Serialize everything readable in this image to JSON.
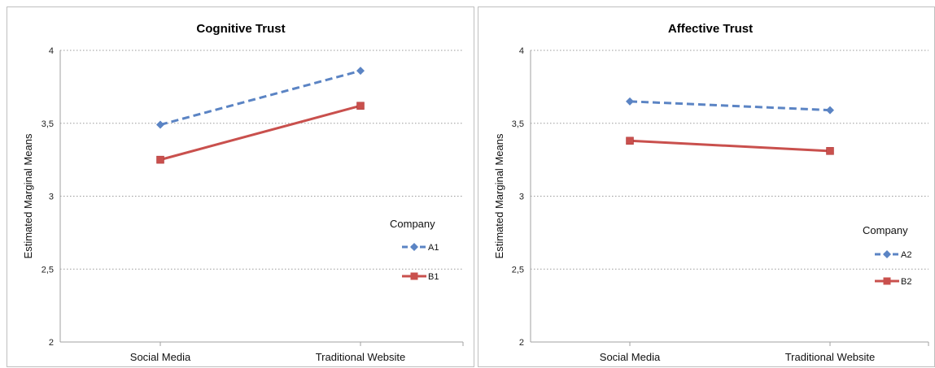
{
  "chart_data": [
    {
      "type": "line",
      "title": "Cognitive Trust",
      "ylabel": "Estimated Marginal Means",
      "xlabel": "",
      "categories": [
        "Social Media",
        "Traditional Website"
      ],
      "ylim": [
        2,
        4
      ],
      "yticks": [
        "2",
        "2,5",
        "3",
        "3,5",
        "4"
      ],
      "legend_title": "Company",
      "legend_position": "right",
      "grid": true,
      "series": [
        {
          "name": "A1",
          "values": [
            3.49,
            3.86
          ],
          "color": "#5b84c4",
          "style": "dashed",
          "marker": "diamond"
        },
        {
          "name": "B1",
          "values": [
            3.25,
            3.62
          ],
          "color": "#c9504d",
          "style": "solid",
          "marker": "square"
        }
      ]
    },
    {
      "type": "line",
      "title": "Affective Trust",
      "ylabel": "Estimated Marginal Means",
      "xlabel": "",
      "categories": [
        "Social Media",
        "Traditional Website"
      ],
      "ylim": [
        2,
        4
      ],
      "yticks": [
        "2",
        "2,5",
        "3",
        "3,5",
        "4"
      ],
      "legend_title": "Company",
      "legend_position": "right",
      "grid": true,
      "series": [
        {
          "name": "A2",
          "values": [
            3.65,
            3.59
          ],
          "color": "#5b84c4",
          "style": "dashed",
          "marker": "diamond"
        },
        {
          "name": "B2",
          "values": [
            3.38,
            3.31
          ],
          "color": "#c9504d",
          "style": "solid",
          "marker": "square"
        }
      ]
    }
  ]
}
